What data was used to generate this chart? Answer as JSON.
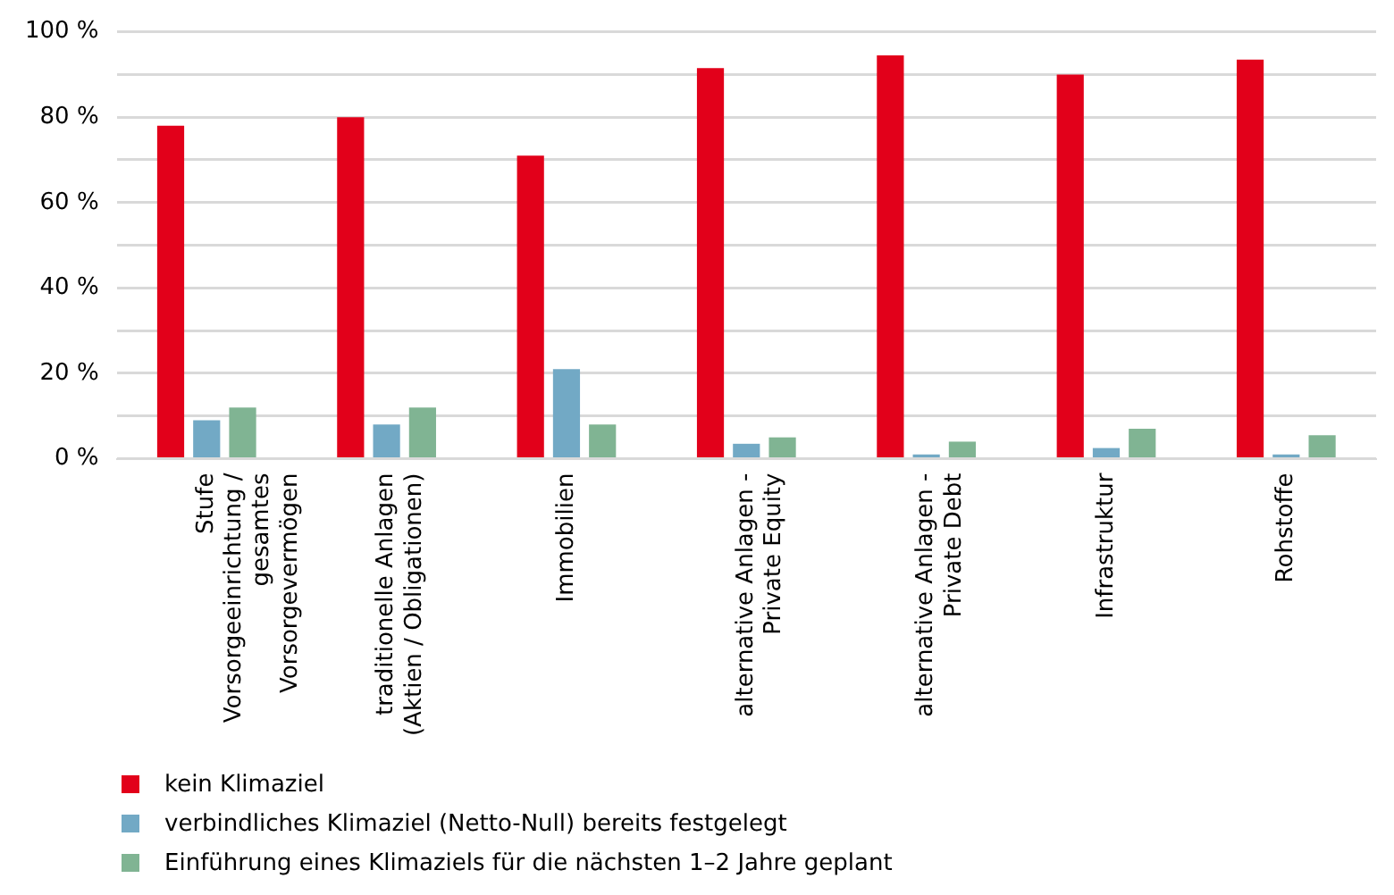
{
  "chart_data": {
    "type": "bar",
    "categories": [
      "Stufe\nVorsorgeeinrichtung /\ngesamtes\nVorsorgevermögen",
      "traditionelle Anlagen\n(Aktien / Obligationen)",
      "Immobilien",
      "alternative Anlagen -\nPrivate Equity",
      "alternative Anlagen -\nPrivate Debt",
      "Infrastruktur",
      "Rohstoffe"
    ],
    "series": [
      {
        "name": "kein Klimaziel",
        "color": "#e2001a",
        "values": [
          78,
          80,
          71,
          91.5,
          94.5,
          90,
          93.5
        ]
      },
      {
        "name": "verbindliches Klimaziel (Netto-Null) bereits festgelegt",
        "color": "#72a9c5",
        "values": [
          9,
          8,
          21,
          3.5,
          1,
          2.5,
          1
        ]
      },
      {
        "name": "Einführung eines Klimaziels für die nächsten 1–2 Jahre geplant",
        "color": "#80b493",
        "values": [
          12,
          12,
          8,
          5,
          4,
          7,
          5.5
        ]
      }
    ],
    "ylim": [
      0,
      100
    ],
    "yticks": [
      {
        "value": 0,
        "label": "0 %"
      },
      {
        "value": 10,
        "label": null
      },
      {
        "value": 20,
        "label": "20 %"
      },
      {
        "value": 30,
        "label": null
      },
      {
        "value": 40,
        "label": "40 %"
      },
      {
        "value": 50,
        "label": null
      },
      {
        "value": 60,
        "label": "60 %"
      },
      {
        "value": 70,
        "label": null
      },
      {
        "value": 80,
        "label": "80 %"
      },
      {
        "value": 90,
        "label": null
      },
      {
        "value": 100,
        "label": "100 %"
      }
    ],
    "grid": "y",
    "legend": "bottom left"
  }
}
